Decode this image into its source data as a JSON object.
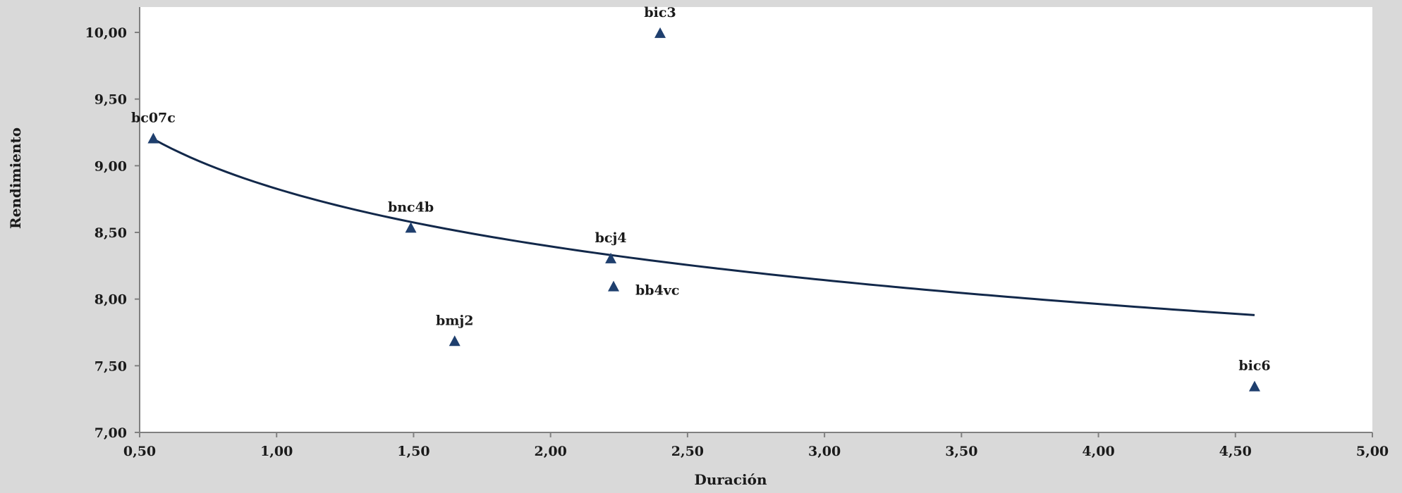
{
  "chart_data": {
    "type": "scatter",
    "title": "",
    "xlabel": "Duración",
    "ylabel": "Rendimiento",
    "xlim": [
      0.5,
      5.0
    ],
    "ylim": [
      7.0,
      10.0
    ],
    "x_ticks": [
      "0,50",
      "1,00",
      "1,50",
      "2,00",
      "2,50",
      "3,00",
      "3,50",
      "4,00",
      "4,50",
      "5,00"
    ],
    "y_ticks": [
      "7,00",
      "7,50",
      "8,00",
      "8,50",
      "9,00",
      "9,50",
      "10,00"
    ],
    "grid": false,
    "legend": "none",
    "marker": "triangle",
    "marker_color": "#1f3f6e",
    "trendline_color": "#12284a",
    "plot_background": "#ffffff",
    "page_background": "#d9d9d9",
    "points": [
      {
        "label": "bc07c",
        "x": 0.55,
        "y": 9.2
      },
      {
        "label": "bnc4b",
        "x": 1.49,
        "y": 8.53
      },
      {
        "label": "bmj2",
        "x": 1.65,
        "y": 7.68
      },
      {
        "label": "bcj4",
        "x": 2.22,
        "y": 8.3
      },
      {
        "label": "bb4vc",
        "x": 2.23,
        "y": 8.09
      },
      {
        "label": "bic3",
        "x": 2.4,
        "y": 9.99
      },
      {
        "label": "bic6",
        "x": 4.57,
        "y": 7.34
      }
    ],
    "trendline": {
      "type": "logarithmic",
      "x_range": [
        0.55,
        4.57
      ],
      "y_at_start": 9.2,
      "y_at_end": 7.88
    }
  }
}
